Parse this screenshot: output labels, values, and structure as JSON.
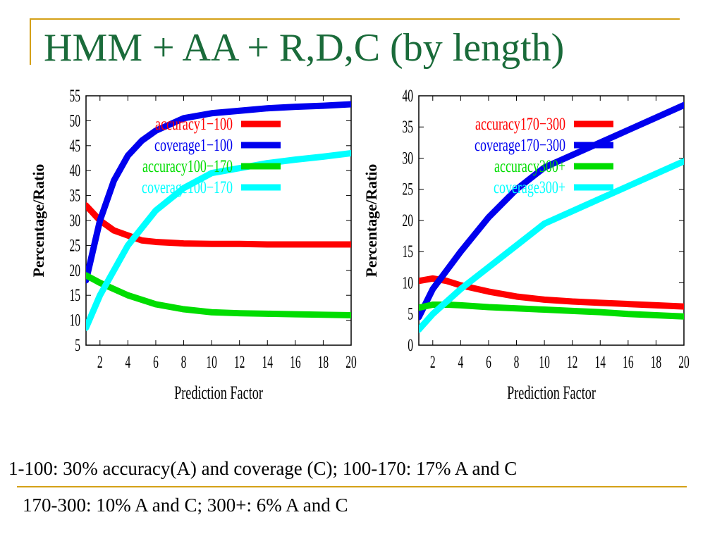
{
  "slide": {
    "title": "HMM + AA + R,D,C (by length)",
    "caption_line1": "1-100: 30% accuracy(A) and coverage (C); 100-170: 17% A and C",
    "caption_line2": "170-300: 10% A and C; 300+: 6% A and C",
    "title_color": "#1a6b3a",
    "rule_color": "#d4a017"
  },
  "chart_data": [
    {
      "type": "line",
      "xlabel": "Prediction Factor",
      "ylabel": "Percentage/Ratio",
      "xlim": [
        1,
        20
      ],
      "ylim": [
        5,
        55
      ],
      "xticks": [
        2,
        4,
        6,
        8,
        10,
        12,
        14,
        16,
        18,
        20
      ],
      "yticks": [
        5,
        10,
        15,
        20,
        25,
        30,
        35,
        40,
        45,
        50,
        55
      ],
      "legend_position": "top-right",
      "series": [
        {
          "name": "accuracy1−100",
          "color": "#ff0000",
          "x": [
            1,
            2,
            3,
            4,
            5,
            6,
            8,
            10,
            12,
            14,
            16,
            18,
            20
          ],
          "y": [
            33,
            30,
            28,
            27,
            26,
            25.7,
            25.4,
            25.3,
            25.3,
            25.2,
            25.2,
            25.2,
            25.2
          ]
        },
        {
          "name": "coverage1−100",
          "color": "#0000ee",
          "x": [
            1,
            2,
            3,
            4,
            5,
            6,
            8,
            10,
            12,
            14,
            16,
            18,
            20
          ],
          "y": [
            18,
            30,
            38,
            43,
            46,
            48,
            50.5,
            51.5,
            52,
            52.5,
            52.8,
            53,
            53.3
          ]
        },
        {
          "name": "accuracy100−170",
          "color": "#00dd00",
          "x": [
            1,
            2,
            4,
            6,
            8,
            10,
            12,
            14,
            16,
            18,
            20
          ],
          "y": [
            19,
            17.5,
            15,
            13.2,
            12.2,
            11.6,
            11.4,
            11.3,
            11.2,
            11.1,
            11
          ]
        },
        {
          "name": "coverage100−170",
          "color": "#00ffff",
          "x": [
            1,
            2,
            4,
            6,
            8,
            10,
            12,
            14,
            16,
            18,
            20
          ],
          "y": [
            8.5,
            15,
            25,
            32,
            36.5,
            39.5,
            40.5,
            41.5,
            42.2,
            42.8,
            43.5
          ]
        }
      ]
    },
    {
      "type": "line",
      "xlabel": "Prediction Factor",
      "ylabel": "Percentage/Ratio",
      "xlim": [
        1,
        20
      ],
      "ylim": [
        0,
        40
      ],
      "xticks": [
        2,
        4,
        6,
        8,
        10,
        12,
        14,
        16,
        18,
        20
      ],
      "yticks": [
        0,
        5,
        10,
        15,
        20,
        25,
        30,
        35,
        40
      ],
      "legend_position": "top-right",
      "series": [
        {
          "name": "accuracy170−300",
          "color": "#ff0000",
          "x": [
            1,
            2,
            3,
            4,
            6,
            8,
            10,
            12,
            14,
            16,
            18,
            20
          ],
          "y": [
            10.3,
            10.7,
            10.3,
            9.6,
            8.6,
            7.8,
            7.3,
            7,
            6.8,
            6.6,
            6.4,
            6.2
          ]
        },
        {
          "name": "coverage170−300",
          "color": "#0000ee",
          "x": [
            1,
            2,
            4,
            6,
            8,
            10,
            12,
            14,
            16,
            18,
            20
          ],
          "y": [
            4.5,
            9,
            15,
            20.5,
            25,
            28.5,
            30.5,
            32.5,
            34.5,
            36.5,
            38.5
          ]
        },
        {
          "name": "accuracy300+",
          "color": "#00dd00",
          "x": [
            1,
            2,
            3,
            4,
            6,
            8,
            10,
            12,
            14,
            16,
            18,
            20
          ],
          "y": [
            6,
            6.5,
            6.5,
            6.4,
            6.1,
            5.9,
            5.7,
            5.5,
            5.3,
            5,
            4.8,
            4.6
          ]
        },
        {
          "name": "coverage300+",
          "color": "#00ffff",
          "x": [
            1,
            2,
            4,
            6,
            8,
            10,
            12,
            14,
            16,
            18,
            20
          ],
          "y": [
            2.5,
            5,
            9,
            12.5,
            16,
            19.5,
            21.5,
            23.5,
            25.5,
            27.5,
            29.5
          ]
        }
      ]
    }
  ]
}
